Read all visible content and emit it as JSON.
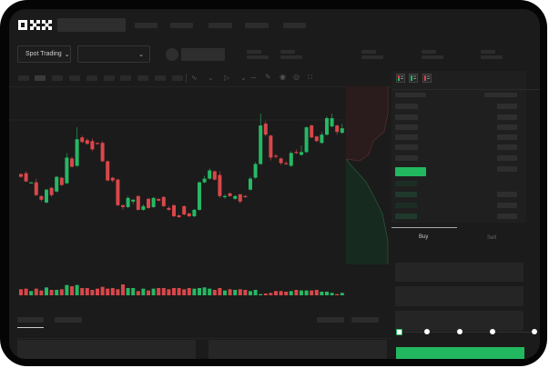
{
  "header": {
    "logo": "OKX"
  },
  "selectors": {
    "market_label": "Spot Trading",
    "market_chevron": "chevron-down-icon",
    "pair_chevron": "chevron-down-icon"
  },
  "toolbar": {
    "icons": [
      "line-tool-icon",
      "ruler-icon",
      "camera-icon",
      "settings-icon",
      "fullscreen-icon"
    ]
  },
  "order_book": {
    "view_icons": [
      "order-book-both-icon",
      "order-book-bids-icon",
      "order-book-asks-icon"
    ]
  },
  "trade": {
    "buy_tab": "Buy",
    "sell_tab": "Sell",
    "slider_value": 0
  },
  "colors": {
    "up": "#26b864",
    "down": "#d9474a",
    "background": "#1b1b1b",
    "accent": "#22b85f"
  },
  "chart_data": {
    "type": "candlestick",
    "candles": [
      [
        57,
        58,
        53,
        54
      ],
      [
        58,
        60,
        48,
        49
      ],
      [
        47,
        48,
        47,
        48
      ],
      [
        48,
        52,
        33,
        34
      ],
      [
        33,
        34,
        27,
        29
      ],
      [
        26,
        41,
        25,
        40
      ],
      [
        42,
        43,
        32,
        34
      ],
      [
        38,
        55,
        37,
        54
      ],
      [
        53,
        54,
        44,
        45
      ],
      [
        47,
        80,
        46,
        75
      ],
      [
        74,
        76,
        64,
        65
      ],
      [
        66,
        108,
        65,
        95
      ],
      [
        97,
        99,
        91,
        92
      ],
      [
        94,
        96,
        89,
        90
      ],
      [
        93,
        96,
        82,
        84
      ],
      [
        91,
        91,
        89,
        90
      ],
      [
        91,
        93,
        70,
        71
      ],
      [
        71,
        72,
        49,
        50
      ],
      [
        53,
        54,
        48,
        50
      ],
      [
        51,
        52,
        22,
        23
      ],
      [
        23,
        24,
        18,
        21
      ],
      [
        21,
        33,
        20,
        31
      ],
      [
        27,
        30,
        24,
        29
      ],
      [
        33,
        34,
        17,
        18
      ],
      [
        18,
        24,
        17,
        22
      ],
      [
        30,
        31,
        19,
        20
      ],
      [
        21,
        32,
        20,
        31
      ],
      [
        30,
        30,
        27,
        28
      ],
      [
        32,
        33,
        21,
        22
      ],
      [
        20,
        22,
        17,
        18
      ],
      [
        23,
        24,
        10,
        11
      ],
      [
        12,
        13,
        9,
        10
      ],
      [
        22,
        23,
        12,
        13
      ],
      [
        14,
        15,
        10,
        11
      ],
      [
        11,
        19,
        10,
        18
      ],
      [
        18,
        49,
        17,
        48
      ],
      [
        48,
        55,
        47,
        52
      ],
      [
        52,
        63,
        51,
        61
      ],
      [
        60,
        61,
        50,
        51
      ],
      [
        56,
        60,
        31,
        33
      ],
      [
        32,
        35,
        30,
        33
      ],
      [
        36,
        37,
        32,
        33
      ],
      [
        30,
        34,
        29,
        33
      ],
      [
        35,
        35,
        25,
        27
      ],
      [
        33,
        34,
        31,
        32
      ],
      [
        40,
        54,
        39,
        52
      ],
      [
        53,
        70,
        52,
        68
      ],
      [
        68,
        123,
        67,
        110
      ],
      [
        112,
        115,
        98,
        100
      ],
      [
        99,
        100,
        72,
        75
      ],
      [
        77,
        79,
        74,
        76
      ],
      [
        74,
        75,
        67,
        69
      ],
      [
        69,
        71,
        67,
        68
      ],
      [
        66,
        82,
        65,
        80
      ],
      [
        81,
        84,
        79,
        80
      ],
      [
        78,
        88,
        77,
        81
      ],
      [
        81,
        109,
        80,
        108
      ],
      [
        110,
        111,
        96,
        97
      ],
      [
        98,
        99,
        92,
        93
      ],
      [
        91,
        103,
        90,
        100
      ],
      [
        100,
        120,
        99,
        118
      ],
      [
        109,
        123,
        108,
        118
      ],
      [
        110,
        111,
        100,
        103
      ],
      [
        102,
        112,
        101,
        107
      ]
    ],
    "volume": [
      10,
      11,
      7,
      11,
      8,
      13,
      9,
      9,
      10,
      17,
      15,
      17,
      12,
      12,
      9,
      11,
      14,
      11,
      12,
      10,
      18,
      12,
      12,
      7,
      11,
      8,
      11,
      12,
      12,
      10,
      12,
      12,
      10,
      12,
      11,
      12,
      13,
      11,
      9,
      12,
      8,
      10,
      9,
      10,
      9,
      7,
      9,
      2,
      3,
      4,
      7,
      7,
      6,
      7,
      9,
      8,
      8,
      8,
      9,
      6,
      6,
      4,
      2,
      4
    ]
  }
}
